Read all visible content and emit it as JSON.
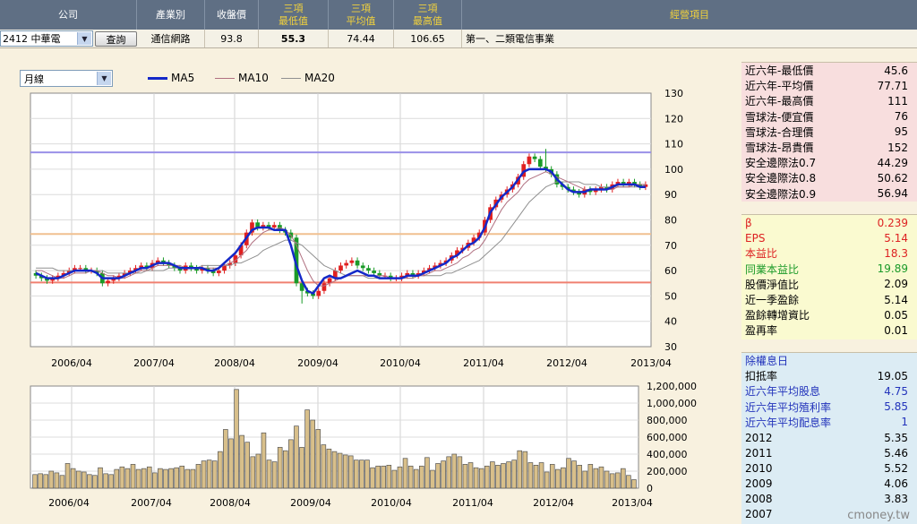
{
  "header": {
    "company": "公司",
    "industry": "產業別",
    "close": "收盤價",
    "min3": [
      "三項",
      "最低值"
    ],
    "avg3": [
      "三項",
      "平均值"
    ],
    "max3": [
      "三項",
      "最高值"
    ],
    "business": "經營項目"
  },
  "row": {
    "stock_select": "2412 中華電",
    "query_button": "查詢",
    "industry": "通信網路",
    "close": "93.8",
    "min3": "55.3",
    "avg3": "74.44",
    "max3": "106.65",
    "business": "第一、二類電信事業"
  },
  "period_select": "月線",
  "legend": [
    {
      "name": "MA5",
      "color": "#1428c8"
    },
    {
      "name": "MA10",
      "color": "#b07080"
    },
    {
      "name": "MA20",
      "color": "#909090"
    }
  ],
  "colors": {
    "up": "#e02020",
    "down": "#1a9a28",
    "volume": "#d8bf8a"
  },
  "chart_data": [
    {
      "type": "candlestick",
      "x_ticks": [
        "2006/04",
        "2007/04",
        "2008/04",
        "2009/04",
        "2010/04",
        "2011/04",
        "2012/04",
        "2013/04"
      ],
      "ylim": [
        30,
        130
      ],
      "y_ticks": [
        30,
        40,
        50,
        60,
        70,
        80,
        90,
        100,
        110,
        120,
        130
      ],
      "hlines": [
        {
          "value": 106.65,
          "color": "#9a90e8"
        },
        {
          "value": 74.44,
          "color": "#f0c090"
        },
        {
          "value": 55.3,
          "color": "#f08070"
        }
      ],
      "close": [
        58,
        57,
        56,
        57,
        58,
        59,
        60,
        61,
        61,
        60,
        60,
        59,
        55,
        56,
        57,
        58,
        59,
        60,
        61,
        62,
        61,
        63,
        64,
        63,
        62,
        61,
        60,
        62,
        61,
        60,
        61,
        60,
        59,
        60,
        62,
        63,
        66,
        70,
        75,
        79,
        77,
        78,
        77,
        78,
        76,
        75,
        73,
        55,
        52,
        51,
        50,
        52,
        55,
        57,
        60,
        62,
        63,
        64,
        62,
        61,
        60,
        59,
        58,
        58,
        57,
        57,
        58,
        59,
        58,
        59,
        60,
        61,
        62,
        63,
        64,
        66,
        68,
        69,
        71,
        73,
        75,
        80,
        85,
        88,
        90,
        92,
        94,
        97,
        102,
        105,
        104,
        101,
        100,
        98,
        94,
        93,
        92,
        91,
        90,
        92,
        91,
        92,
        93,
        92,
        94,
        95,
        94,
        95,
        94,
        93,
        94
      ],
      "ma5": [
        59,
        58,
        57,
        57,
        57,
        58,
        59,
        60,
        60,
        60,
        60,
        59,
        57,
        57,
        57,
        57,
        58,
        59,
        60,
        61,
        61,
        62,
        63,
        63,
        63,
        62,
        61,
        61,
        61,
        61,
        61,
        60,
        60,
        61,
        63,
        65,
        67,
        70,
        73,
        76,
        77,
        77,
        77,
        76,
        76,
        76,
        70,
        62,
        56,
        52,
        51,
        54,
        57,
        58,
        57,
        57,
        58,
        59,
        60,
        59,
        58,
        58,
        57,
        57,
        57,
        57,
        57,
        58,
        58,
        58,
        59,
        60,
        61,
        62,
        63,
        65,
        66,
        68,
        70,
        71,
        73,
        77,
        83,
        86,
        89,
        91,
        93,
        96,
        99,
        100,
        100,
        100,
        100,
        99,
        96,
        94,
        92,
        91,
        91,
        91,
        92,
        92,
        92,
        92,
        93,
        94,
        94,
        94,
        94,
        93,
        93
      ],
      "ma10": [
        60,
        60,
        59,
        58,
        57,
        57,
        58,
        59,
        59,
        59,
        60,
        60,
        59,
        58,
        58,
        57,
        57,
        58,
        59,
        60,
        60,
        61,
        62,
        62,
        62,
        62,
        62,
        61,
        61,
        61,
        61,
        61,
        61,
        61,
        62,
        63,
        64,
        66,
        68,
        71,
        73,
        75,
        76,
        76,
        77,
        76,
        74,
        70,
        65,
        60,
        56,
        54,
        54,
        55,
        56,
        57,
        58,
        58,
        58,
        58,
        58,
        58,
        58,
        58,
        57,
        57,
        57,
        57,
        57,
        58,
        58,
        59,
        60,
        60,
        61,
        62,
        63,
        65,
        66,
        68,
        69,
        72,
        76,
        80,
        84,
        87,
        89,
        91,
        94,
        96,
        97,
        98,
        99,
        98,
        97,
        96,
        95,
        94,
        93,
        92,
        92,
        92,
        92,
        92,
        92,
        93,
        93,
        93,
        94,
        94,
        94
      ],
      "ma20": [
        61,
        61,
        61,
        61,
        60,
        60,
        60,
        60,
        60,
        60,
        60,
        60,
        60,
        59,
        59,
        59,
        59,
        59,
        59,
        59,
        60,
        60,
        60,
        60,
        61,
        61,
        61,
        61,
        61,
        61,
        62,
        62,
        62,
        62,
        62,
        62,
        63,
        63,
        64,
        65,
        66,
        68,
        69,
        70,
        71,
        72,
        72,
        71,
        70,
        68,
        66,
        64,
        62,
        61,
        60,
        59,
        58,
        58,
        58,
        58,
        57,
        57,
        57,
        57,
        57,
        57,
        57,
        58,
        58,
        58,
        58,
        58,
        58,
        58,
        59,
        59,
        60,
        61,
        62,
        63,
        64,
        66,
        68,
        70,
        72,
        75,
        78,
        81,
        84,
        87,
        89,
        91,
        93,
        94,
        95,
        95,
        95,
        95,
        95,
        94,
        94,
        94,
        93,
        93,
        93,
        93,
        93,
        93,
        93,
        93,
        94
      ]
    },
    {
      "type": "bar",
      "name": "volume",
      "x_ticks": [
        "2006/04",
        "2007/04",
        "2008/04",
        "2009/04",
        "2010/04",
        "2011/04",
        "2012/04",
        "2013/04"
      ],
      "ylim": [
        0,
        1200000
      ],
      "y_ticks": [
        "0",
        "200,000",
        "400,000",
        "600,000",
        "800,000",
        "1,000,000",
        "1,200,000"
      ],
      "values": [
        160000,
        170000,
        160000,
        200000,
        180000,
        150000,
        290000,
        230000,
        200000,
        190000,
        160000,
        150000,
        240000,
        170000,
        160000,
        220000,
        250000,
        230000,
        280000,
        220000,
        230000,
        250000,
        180000,
        230000,
        220000,
        230000,
        240000,
        260000,
        220000,
        220000,
        280000,
        320000,
        330000,
        320000,
        430000,
        690000,
        580000,
        1160000,
        620000,
        540000,
        370000,
        400000,
        650000,
        330000,
        310000,
        480000,
        440000,
        570000,
        730000,
        480000,
        920000,
        800000,
        690000,
        510000,
        460000,
        430000,
        410000,
        390000,
        380000,
        330000,
        330000,
        330000,
        240000,
        260000,
        260000,
        270000,
        210000,
        250000,
        350000,
        260000,
        220000,
        260000,
        360000,
        210000,
        290000,
        320000,
        370000,
        400000,
        370000,
        280000,
        300000,
        240000,
        230000,
        260000,
        310000,
        270000,
        290000,
        310000,
        330000,
        440000,
        430000,
        300000,
        270000,
        300000,
        190000,
        280000,
        220000,
        240000,
        350000,
        320000,
        270000,
        200000,
        280000,
        230000,
        250000,
        200000,
        170000,
        180000,
        230000,
        150000,
        100000
      ]
    }
  ],
  "panel_valuation": [
    {
      "label": "近六年-最低價",
      "value": "45.6"
    },
    {
      "label": "近六年-平均價",
      "value": "77.71"
    },
    {
      "label": "近六年-最高價",
      "value": "111"
    },
    {
      "label": "雪球法-便宜價",
      "value": "76"
    },
    {
      "label": "雪球法-合理價",
      "value": "95"
    },
    {
      "label": "雪球法-昂貴價",
      "value": "152"
    },
    {
      "label": "安全邊際法0.7",
      "value": "44.29"
    },
    {
      "label": "安全邊際法0.8",
      "value": "50.62"
    },
    {
      "label": "安全邊際法0.9",
      "value": "56.94"
    }
  ],
  "panel_fundamentals": [
    {
      "label": "β",
      "value": "0.239",
      "style": "red"
    },
    {
      "label": " EPS",
      "value": "5.14",
      "style": "red"
    },
    {
      "label": "本益比",
      "value": "18.3",
      "style": "red"
    },
    {
      "label": "同業本益比",
      "value": "19.89",
      "style": "green"
    },
    {
      "label": "股價淨值比",
      "value": "2.09",
      "style": ""
    },
    {
      "label": "近一季盈餘",
      "value": "5.14",
      "style": ""
    },
    {
      "label": "盈餘轉增資比",
      "value": "0.05",
      "style": ""
    },
    {
      "label": "盈再率",
      "value": "0.01",
      "style": ""
    }
  ],
  "panel_dividend": [
    {
      "label": "除權息日",
      "value": "",
      "style": "blue"
    },
    {
      "label": "扣抵率",
      "value": "19.05",
      "style": ""
    },
    {
      "label": "近六年平均股息",
      "value": "4.75",
      "style": "blue"
    },
    {
      "label": "近六年平均殖利率",
      "value": "5.85",
      "style": "blue"
    },
    {
      "label": "近六年平均配息率",
      "value": "1",
      "style": "blue"
    },
    {
      "label": "2012",
      "value": "5.35",
      "style": ""
    },
    {
      "label": "2011",
      "value": "5.46",
      "style": ""
    },
    {
      "label": "2010",
      "value": "5.52",
      "style": ""
    },
    {
      "label": "2009",
      "value": "4.06",
      "style": ""
    },
    {
      "label": "2008",
      "value": "3.83",
      "style": ""
    },
    {
      "label": "2007",
      "value": "",
      "style": ""
    }
  ],
  "footer": "cmoney.tw"
}
